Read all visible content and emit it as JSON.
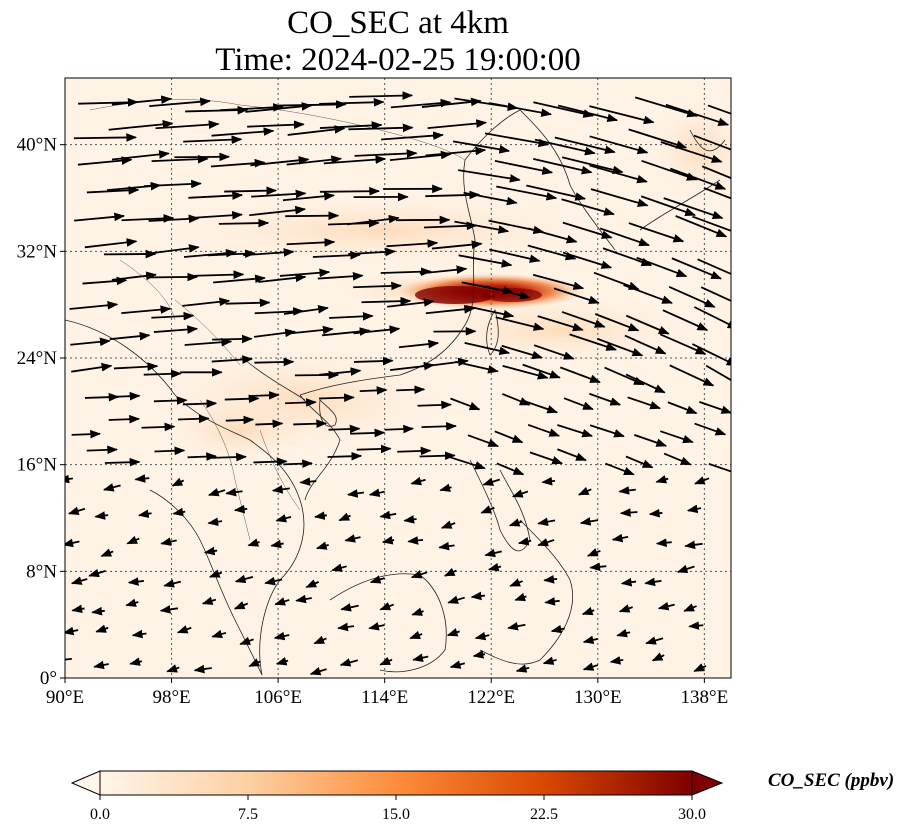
{
  "title": {
    "line1": "CO_SEC at 4km",
    "line2": "Time: 2024-02-25 19:00:00"
  },
  "map": {
    "lon_range": [
      90,
      140
    ],
    "lat_range": [
      0,
      45
    ],
    "lon_ticks": [
      "90°E",
      "98°E",
      "106°E",
      "114°E",
      "122°E",
      "130°E",
      "138°E"
    ],
    "lat_ticks": [
      "0°",
      "8°N",
      "16°N",
      "24°N",
      "32°N",
      "40°N"
    ],
    "gridlines": true,
    "plume": {
      "center_lon": 122,
      "center_lat": 29,
      "max_value": 30
    }
  },
  "colorbar": {
    "label": "CO_SEC (ppbv)",
    "min": 0,
    "max": 30,
    "ticks": [
      "0.0",
      "7.5",
      "15.0",
      "22.5",
      "30.0"
    ],
    "colors": [
      "#fff5eb",
      "#fdd0a2",
      "#fd8d3c",
      "#d94801",
      "#7f0000"
    ],
    "extend": "both"
  }
}
